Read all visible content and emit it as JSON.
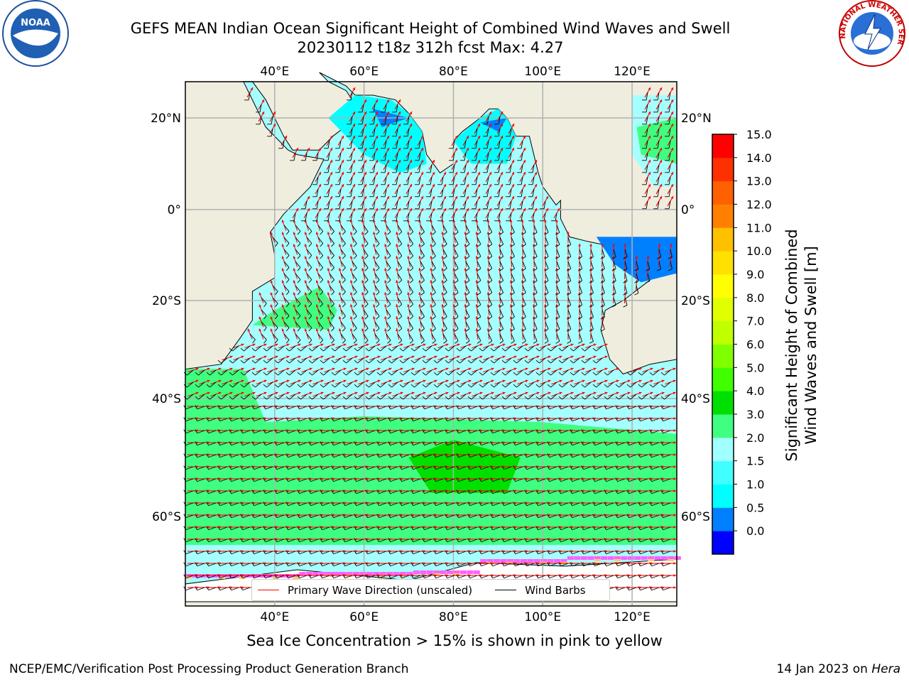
{
  "title_line1": "GEFS MEAN Indian Ocean Significant Height of Combined Wind Waves and Swell",
  "title_line2": "20230112 t18z 312h fcst   Max: 4.27",
  "caption": "Sea Ice Concentration > 15% is shown in pink to yellow",
  "footer_left": "NCEP/EMC/Verification Post Processing Product Generation Branch",
  "footer_date": "14 Jan 2023 on ",
  "footer_host": "Hera",
  "legend": {
    "wave_direction": "Primary Wave Direction (unscaled)",
    "wind_barbs": "Wind Barbs",
    "wave_color": "#ff0000",
    "barb_color": "#000000"
  },
  "logos": {
    "noaa_text": "NOAA",
    "nws_text": "NATIONAL WEATHER SERVICE"
  },
  "axes": {
    "lon_ticks": [
      "40°E",
      "60°E",
      "80°E",
      "100°E",
      "120°E"
    ],
    "lat_ticks": [
      "20°N",
      "0°",
      "20°S",
      "40°S",
      "60°S"
    ]
  },
  "colorbar": {
    "label_line1": "Significant Height of Combined",
    "label_line2": "Wind Waves and Swell [m]",
    "ticks": [
      "15.0",
      "14.0",
      "13.0",
      "12.0",
      "11.0",
      "10.0",
      "9.0",
      "8.0",
      "7.0",
      "6.0",
      "5.0",
      "4.0",
      "3.0",
      "2.0",
      "1.5",
      "1.0",
      "0.5",
      "0.0"
    ],
    "colors_bottom_to_top": [
      "#0000ff",
      "#0080ff",
      "#00ffff",
      "#40ffff",
      "#a0ffff",
      "#40ff80",
      "#00e000",
      "#40ff00",
      "#80ff00",
      "#c0ff00",
      "#e0ff00",
      "#ffff00",
      "#ffe000",
      "#ffc000",
      "#ff8000",
      "#ff6000",
      "#ff3000",
      "#ff0000"
    ]
  },
  "map_colors": {
    "land": "#efedde",
    "grid": "#b0b0b0"
  }
}
